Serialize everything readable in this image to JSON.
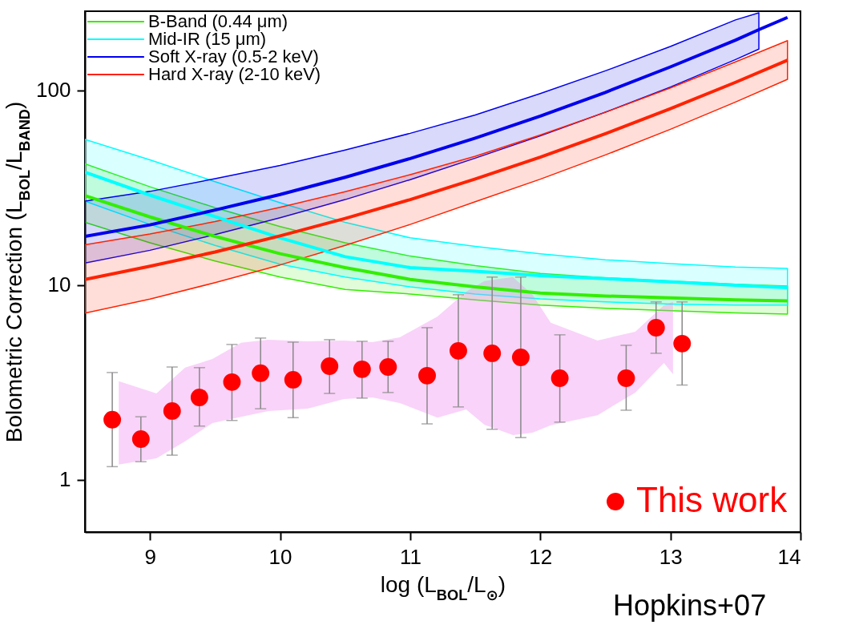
{
  "chart_data": {
    "type": "line",
    "xlabel": "log (L$_{BOL}$/L$_{⊙}$)",
    "ylabel": "Bolometric Correction (L$_{BOL}$/L$_{BAND}$)",
    "annotations": [
      "Hopkins+07"
    ],
    "x": [
      8.5,
      9,
      9.5,
      10,
      10.5,
      11,
      11.5,
      12,
      12.5,
      13,
      13.5,
      13.9
    ],
    "xlim": [
      8.5,
      14
    ],
    "xticks": [
      9,
      10,
      11,
      12,
      13,
      14
    ],
    "ylim": [
      0.54,
      255
    ],
    "yticks": [
      1,
      10,
      100
    ],
    "log": "y",
    "grid": false,
    "legend": "top left",
    "marker": "none",
    "line_style": "solid",
    "series": [
      {
        "name": "B-Band (0.44 μm)",
        "color": "#33ee00",
        "values": [
          28.8,
          22.4,
          17.8,
          14.5,
          12.3,
          10.7,
          9.8,
          9.1,
          8.8,
          8.6,
          8.4,
          8.3
        ],
        "upper": [
          42,
          32,
          25,
          20,
          16.5,
          14.1,
          12.6,
          11.5,
          10.9,
          10.5,
          10.1,
          9.9
        ],
        "lower": [
          21,
          16.5,
          13.3,
          11.0,
          9.5,
          9.0,
          8.4,
          7.9,
          7.6,
          7.4,
          7.2,
          7.1
        ]
      },
      {
        "name": "Mid-IR (15 μm)",
        "color": "#00ffff",
        "values": [
          38,
          29,
          22.5,
          17.5,
          14,
          12.3,
          11.8,
          11.2,
          10.8,
          10.4,
          10.0,
          9.7
        ],
        "upper": [
          56,
          44,
          34,
          26.5,
          21,
          17.5,
          15.8,
          14.5,
          13.5,
          12.9,
          12.4,
          12.2
        ],
        "lower": [
          27,
          20.5,
          16,
          12.8,
          11,
          9.8,
          9.0,
          8.5,
          8.2,
          8.0,
          7.9,
          7.9
        ]
      },
      {
        "name": "Soft X-ray (0.5-2 keV)",
        "color": "#0000ee",
        "x": [
          8.5,
          9,
          9.5,
          10,
          10.5,
          11,
          11.5,
          12,
          12.5,
          13,
          13.5,
          13.68,
          13.9
        ],
        "values": [
          17.8,
          20.4,
          24.3,
          29.2,
          35.8,
          44.7,
          56.9,
          73.8,
          97.7,
          132,
          181,
          205,
          237
        ],
        "upper": [
          27.0,
          30.3,
          35.2,
          41.2,
          49.4,
          60.2,
          74.8,
          96.3,
          126,
          168,
          230,
          250,
          null
        ],
        "lower": [
          13.0,
          15.1,
          18.2,
          22.2,
          27.5,
          34.8,
          44.9,
          58.4,
          77.3,
          104,
          144,
          163,
          null
        ]
      },
      {
        "name": "Hard X-ray (2-10 keV)",
        "color": "#ff2200",
        "values": [
          10.7,
          12.5,
          14.8,
          17.9,
          22.0,
          27.5,
          35.1,
          45.4,
          59.9,
          80.5,
          110,
          143
        ],
        "upper": [
          16.1,
          18.3,
          21.2,
          25.1,
          30.2,
          36.9,
          45.9,
          59.0,
          77.2,
          103,
          140,
          180
        ],
        "lower": [
          7.18,
          8.48,
          10.3,
          12.7,
          16.0,
          20.5,
          26.8,
          35.0,
          46.6,
          63.1,
          87.1,
          114
        ]
      },
      {
        "type": "area",
        "color": "#ee82ee",
        "x": [
          8.76,
          9.05,
          9.27,
          9.48,
          9.7,
          9.91,
          10.21,
          10.49,
          10.71,
          10.92,
          11.21,
          11.43,
          11.57,
          11.79,
          11.94,
          12.08,
          12.44,
          12.73,
          12.95,
          13.02
        ],
        "values": [
          null,
          null,
          null,
          null,
          null,
          null,
          null,
          null,
          null,
          null,
          null,
          null,
          null,
          null,
          null,
          null,
          null,
          null,
          null,
          null
        ],
        "upper": [
          3.21,
          2.78,
          3.77,
          4.18,
          5.06,
          5.25,
          5.15,
          5.2,
          5.1,
          5.4,
          6.91,
          9.27,
          10.5,
          11.0,
          8.93,
          6.41,
          5.2,
          5.77,
          7.89,
          8.2
        ],
        "lower": [
          1.2,
          1.29,
          1.58,
          1.96,
          2.11,
          2.26,
          2.32,
          2.6,
          2.65,
          2.48,
          2.09,
          2.3,
          1.92,
          1.7,
          1.75,
          1.91,
          2.15,
          2.81,
          3.99,
          3.49
        ]
      },
      {
        "type": "scatter",
        "marker": "circle",
        "name": "This work",
        "color": "#ff0000",
        "x": [
          8.71,
          8.93,
          9.17,
          9.38,
          9.63,
          9.85,
          10.1,
          10.38,
          10.63,
          10.83,
          11.13,
          11.37,
          11.63,
          11.85,
          12.15,
          12.66,
          12.89,
          13.09
        ],
        "values": [
          2.04,
          1.62,
          2.26,
          2.65,
          3.18,
          3.53,
          3.27,
          3.84,
          3.7,
          3.8,
          3.43,
          4.6,
          4.47,
          4.26,
          3.33,
          3.33,
          6.05,
          5.01
        ],
        "errors": [
          [
            1.17,
            3.56
          ],
          [
            1.24,
            2.11
          ],
          [
            1.34,
            3.8
          ],
          [
            1.89,
            3.77
          ],
          [
            2.02,
            4.96
          ],
          [
            2.32,
            5.35
          ],
          [
            2.09,
            5.1
          ],
          [
            2.78,
            5.25
          ],
          [
            2.63,
            5.15
          ],
          [
            2.81,
            5.15
          ],
          [
            1.94,
            6.05
          ],
          [
            2.37,
            8.93
          ],
          [
            1.82,
            11.0
          ],
          [
            1.65,
            11.0
          ],
          [
            1.98,
            5.56
          ],
          [
            2.28,
            4.91
          ],
          [
            4.47,
            8.2
          ],
          [
            3.07,
            8.2
          ]
        ]
      }
    ]
  }
}
